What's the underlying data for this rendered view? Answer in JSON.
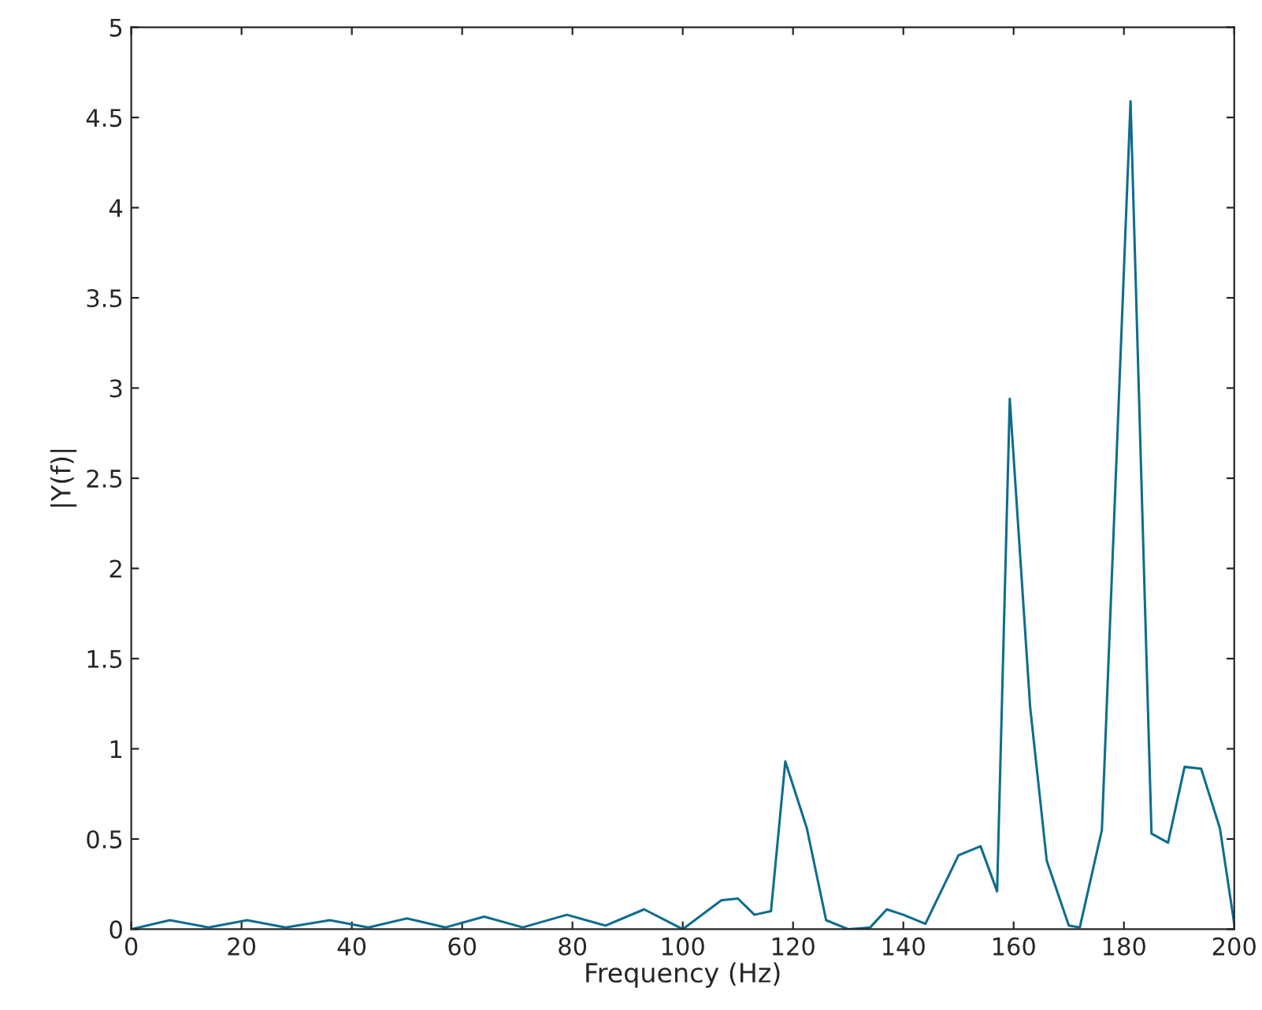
{
  "chart_data": {
    "type": "line",
    "xlabel": "Frequency (Hz)",
    "ylabel": "|Y(f)|",
    "x": [
      0,
      7,
      14,
      21,
      28,
      36,
      43,
      50,
      57,
      64,
      71,
      79,
      86,
      93,
      100,
      107,
      110,
      113,
      116,
      118.6,
      122.5,
      126,
      130,
      134,
      137,
      140,
      144,
      150,
      154,
      157,
      159.3,
      163,
      166,
      170,
      172,
      176,
      181.2,
      185,
      188,
      191,
      194,
      197.4,
      200
    ],
    "series": [
      {
        "color": "#0e6d8e",
        "values": [
          0,
          0.05,
          0.01,
          0.05,
          0.01,
          0.05,
          0.01,
          0.06,
          0.01,
          0.07,
          0.01,
          0.08,
          0.02,
          0.11,
          0,
          0.16,
          0.17,
          0.08,
          0.1,
          0.93,
          0.56,
          0.05,
          0,
          0.01,
          0.11,
          0.08,
          0.03,
          0.41,
          0.46,
          0.21,
          2.94,
          1.23,
          0.38,
          0.02,
          0.01,
          0.55,
          4.59,
          0.53,
          0.48,
          0.9,
          0.89,
          0.56,
          0.03
        ]
      }
    ],
    "xlim": [
      0,
      200
    ],
    "xticks": [
      0,
      20,
      40,
      60,
      80,
      100,
      120,
      140,
      160,
      180,
      200
    ],
    "ylim": [
      0,
      5
    ],
    "yticks": [
      0,
      0.5,
      1,
      1.5,
      2,
      2.5,
      3,
      3.5,
      4,
      4.5,
      5
    ],
    "grid": false,
    "marker": "none",
    "line_style": "solid"
  }
}
